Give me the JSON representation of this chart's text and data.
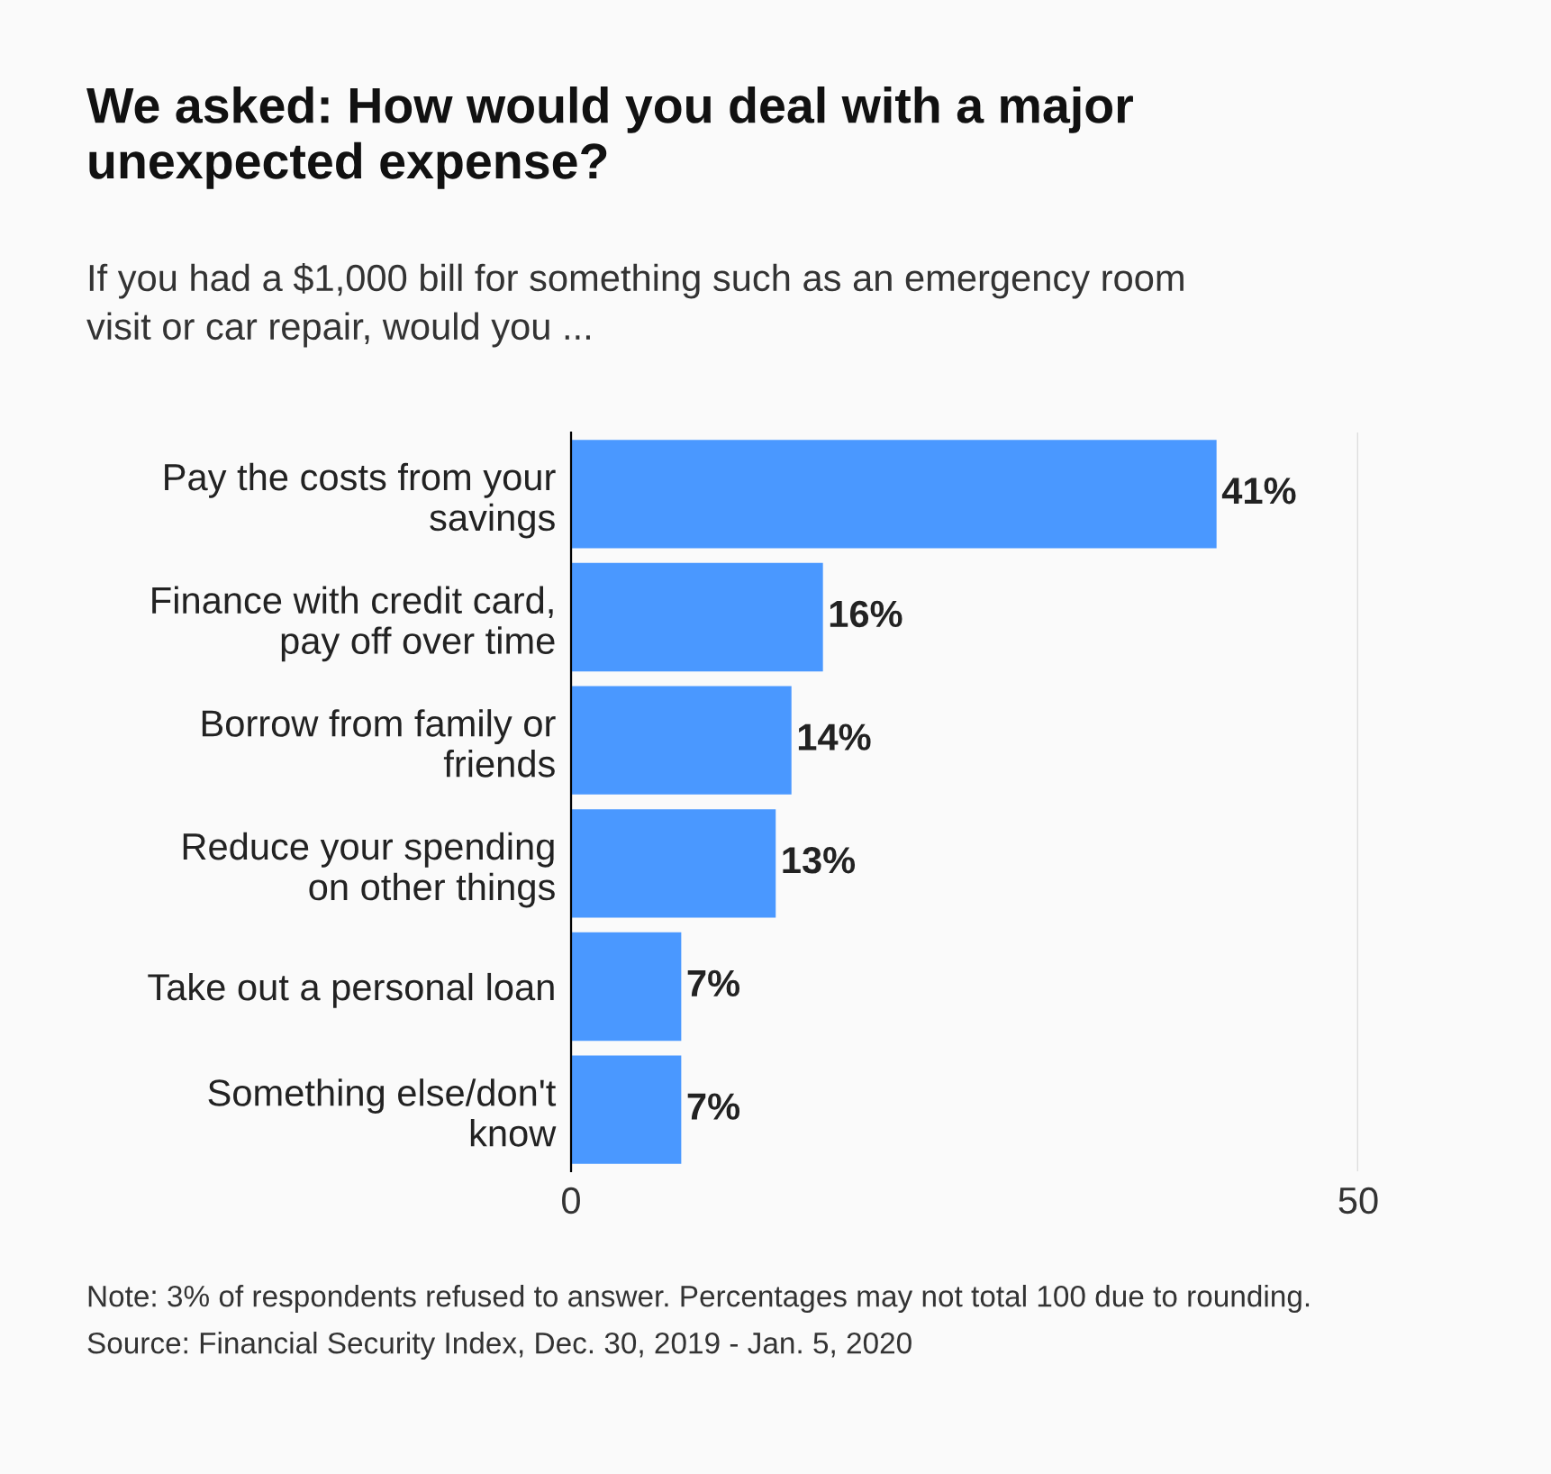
{
  "chart_data": {
    "type": "bar",
    "orientation": "horizontal",
    "title": "We asked: How would you deal with a major\nunexpected expense?",
    "subtitle": "If you had a $1,000 bill for something such as an emergency room\nvisit or car repair, would you ...",
    "categories": [
      "Pay the costs from your\nsavings",
      "Finance with credit card,\npay off over time",
      "Borrow from family or\nfriends",
      "Reduce your spending\non other things",
      "Take out a personal loan",
      "Something else/don't\nknow"
    ],
    "values": [
      41,
      16,
      14,
      13,
      7,
      7
    ],
    "value_labels": [
      "41%",
      "16%",
      "14%",
      "13%",
      "7%",
      "7%"
    ],
    "color": "#4a98ff",
    "xlim": [
      0,
      50
    ],
    "xticks": [
      0,
      50
    ],
    "grid": "x",
    "annotations": [
      "Note: 3% of respondents refused to answer. Percentages may not total 100 due to rounding.",
      "Source: Financial Security Index, Dec. 30, 2019 - Jan. 5, 2020"
    ]
  }
}
